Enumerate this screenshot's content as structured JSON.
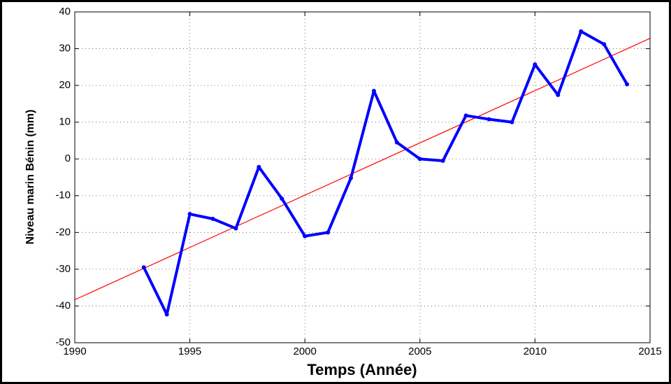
{
  "chart_data": {
    "type": "line",
    "xlabel": "Temps (Année)",
    "ylabel": "Niveau marin Bénin (mm)",
    "series": [
      {
        "color": "#0000ff",
        "x": [
          1993,
          1994,
          1995,
          1996,
          1997,
          1998,
          1999,
          2000,
          2001,
          2002,
          2003,
          2004,
          2005,
          2006,
          2007,
          2008,
          2009,
          2010,
          2011,
          2012,
          2013,
          2014
        ],
        "values": [
          -29.5,
          -42.3,
          -15,
          -16.3,
          -18.9,
          -2.2,
          -10.8,
          -21,
          -20,
          -5.2,
          18.5,
          4.5,
          0,
          -0.5,
          11.8,
          10.8,
          10,
          25.7,
          17.4,
          34.7,
          31.2,
          20.3
        ]
      },
      {
        "color": "#ff0000",
        "x": [
          1990,
          2015
        ],
        "values": [
          -38.3,
          32.8
        ]
      }
    ],
    "xlim": [
      1990,
      2015
    ],
    "xticks": [
      1990,
      1995,
      2000,
      2005,
      2010,
      2015
    ],
    "ylim": [
      -50,
      40
    ],
    "yticks": [
      -50,
      -40,
      -30,
      -20,
      -10,
      0,
      10,
      20,
      30,
      40
    ],
    "grid": true
  }
}
